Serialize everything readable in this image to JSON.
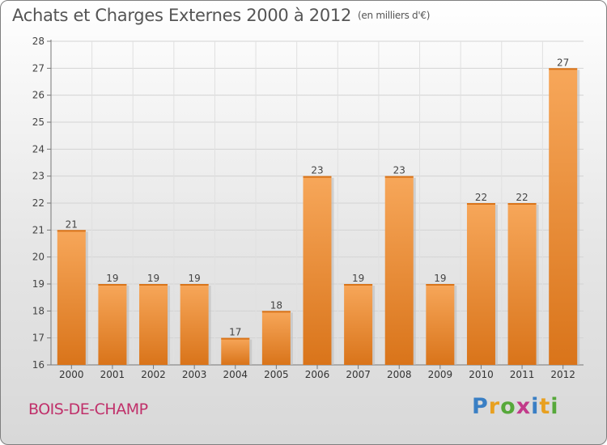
{
  "title": "Achats et Charges Externes 2000 à 2012",
  "unit_label": "(en milliers d'€)",
  "commune": "BOIS-DE-CHAMP",
  "logo": {
    "letters": [
      "P",
      "r",
      "o",
      "x",
      "i",
      "t",
      "i"
    ],
    "colors": [
      "#3a7fc4",
      "#e8a020",
      "#56a83a",
      "#c23a8a",
      "#3a7fc4",
      "#e8a020",
      "#56a83a"
    ]
  },
  "colors": {
    "bar": "#f08a28",
    "bar_light": "#f7a75a",
    "bar_dark": "#d9741a"
  },
  "chart_data": {
    "type": "bar",
    "categories": [
      "2000",
      "2001",
      "2002",
      "2003",
      "2004",
      "2005",
      "2006",
      "2007",
      "2008",
      "2009",
      "2010",
      "2011",
      "2012"
    ],
    "values": [
      21,
      19,
      19,
      19,
      17,
      18,
      23,
      19,
      23,
      19,
      22,
      22,
      27
    ],
    "data_labels": [
      "21",
      "19",
      "19",
      "19",
      "17",
      "18",
      "23",
      "19",
      "23",
      "19",
      "22",
      "22",
      "27"
    ],
    "ylim": [
      16,
      28
    ],
    "y_ticks": [
      16,
      17,
      18,
      19,
      20,
      21,
      22,
      23,
      24,
      25,
      26,
      27,
      28
    ],
    "y_tick_labels": [
      "16",
      "17",
      "18",
      "19",
      "20",
      "21",
      "22",
      "23",
      "24",
      "25",
      "26",
      "27",
      "28"
    ],
    "grid": true,
    "legend": "none"
  }
}
